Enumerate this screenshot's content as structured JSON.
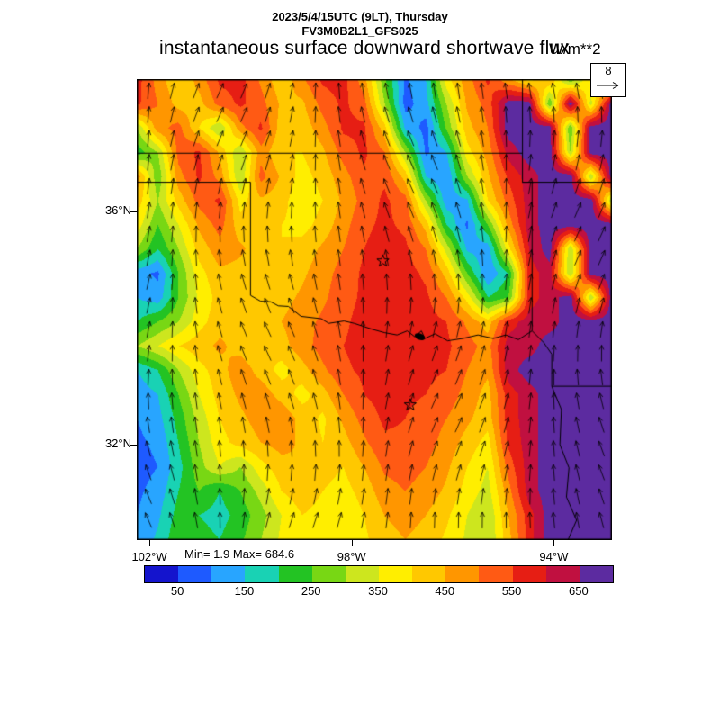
{
  "header": {
    "datetime_line": "2023/5/4/15UTC (9LT), Thursday",
    "model_line": "FV3M0B2L1_GFS025",
    "title": "instantaneous surface downward shortwave flux",
    "units": "W/m**2"
  },
  "stats": {
    "min_max": "Min= 1.9 Max= 684.6"
  },
  "wind_ref": {
    "value": "8"
  },
  "chart_data": {
    "type": "heatmap",
    "title": "instantaneous surface downward shortwave flux",
    "units": "W/m**2",
    "min": 1.9,
    "max": 684.6,
    "wind_reference": 8,
    "lon_range_w": [
      102.25,
      92.85
    ],
    "lat_range_n": [
      30.36,
      38.27
    ],
    "lat_ticks": [
      {
        "value": 36,
        "label": "36°N"
      },
      {
        "value": 32,
        "label": "32°N"
      }
    ],
    "lon_ticks": [
      {
        "value": 102,
        "label": "102°W"
      },
      {
        "value": 98,
        "label": "98°W"
      },
      {
        "value": 94,
        "label": "94°W"
      }
    ],
    "colorbar": {
      "boundaries": [
        50,
        100,
        150,
        200,
        250,
        300,
        350,
        400,
        450,
        500,
        550,
        600,
        650
      ],
      "colors": [
        "#1414cd",
        "#1e5aff",
        "#28a5ff",
        "#19d2b4",
        "#23c323",
        "#78d714",
        "#cde61e",
        "#ffee00",
        "#ffc800",
        "#ff9600",
        "#ff5a14",
        "#e61e14",
        "#c01040",
        "#5c2ba0"
      ],
      "tick_labels": [
        "50",
        "150",
        "250",
        "350",
        "450",
        "550",
        "650"
      ]
    },
    "grid": {
      "cols": 24,
      "rows": 20,
      "values": [
        [
          570,
          480,
          400,
          470,
          560,
          570,
          490,
          410,
          490,
          560,
          570,
          470,
          260,
          90,
          150,
          380,
          480,
          560,
          460,
          380,
          450,
          260,
          400,
          280
        ],
        [
          560,
          500,
          430,
          430,
          520,
          560,
          520,
          440,
          440,
          520,
          560,
          520,
          300,
          80,
          130,
          300,
          460,
          520,
          680,
          680,
          250,
          680,
          330,
          680
        ],
        [
          300,
          480,
          520,
          400,
          300,
          480,
          560,
          420,
          420,
          480,
          560,
          560,
          420,
          140,
          80,
          260,
          430,
          500,
          680,
          680,
          680,
          250,
          680,
          680
        ],
        [
          220,
          300,
          520,
          560,
          440,
          300,
          480,
          400,
          400,
          440,
          520,
          560,
          500,
          300,
          90,
          150,
          380,
          470,
          620,
          680,
          680,
          300,
          680,
          680
        ],
        [
          480,
          260,
          480,
          560,
          480,
          300,
          520,
          440,
          380,
          420,
          480,
          540,
          540,
          430,
          150,
          100,
          300,
          440,
          560,
          625,
          680,
          680,
          300,
          680
        ],
        [
          430,
          300,
          420,
          520,
          560,
          380,
          440,
          420,
          360,
          400,
          460,
          520,
          560,
          520,
          300,
          120,
          140,
          400,
          520,
          625,
          680,
          680,
          680,
          300
        ],
        [
          380,
          250,
          350,
          460,
          520,
          420,
          440,
          400,
          380,
          420,
          480,
          540,
          560,
          540,
          430,
          200,
          90,
          250,
          470,
          625,
          680,
          680,
          680,
          680
        ],
        [
          300,
          200,
          300,
          420,
          480,
          460,
          420,
          400,
          420,
          460,
          500,
          550,
          570,
          560,
          500,
          330,
          140,
          120,
          380,
          600,
          680,
          300,
          680,
          680
        ],
        [
          120,
          90,
          250,
          380,
          440,
          430,
          400,
          410,
          440,
          480,
          520,
          560,
          575,
          570,
          540,
          430,
          250,
          100,
          200,
          575,
          625,
          300,
          680,
          680
        ],
        [
          150,
          120,
          250,
          360,
          420,
          420,
          410,
          430,
          460,
          490,
          530,
          560,
          575,
          575,
          560,
          500,
          380,
          200,
          250,
          575,
          625,
          680,
          300,
          680
        ],
        [
          200,
          250,
          300,
          380,
          430,
          440,
          430,
          450,
          480,
          510,
          540,
          570,
          575,
          575,
          570,
          550,
          490,
          420,
          575,
          625,
          625,
          680,
          680,
          680
        ],
        [
          300,
          350,
          400,
          430,
          460,
          430,
          400,
          430,
          480,
          520,
          550,
          570,
          575,
          575,
          570,
          560,
          520,
          480,
          625,
          625,
          680,
          680,
          680,
          680
        ],
        [
          150,
          200,
          300,
          380,
          430,
          480,
          430,
          380,
          430,
          490,
          540,
          560,
          575,
          570,
          560,
          550,
          500,
          460,
          625,
          680,
          680,
          680,
          680,
          680
        ],
        [
          120,
          150,
          250,
          350,
          420,
          460,
          480,
          430,
          380,
          430,
          500,
          550,
          570,
          560,
          550,
          530,
          480,
          430,
          575,
          625,
          680,
          680,
          680,
          680
        ],
        [
          100,
          130,
          220,
          320,
          400,
          440,
          470,
          490,
          430,
          390,
          460,
          520,
          560,
          550,
          530,
          500,
          460,
          420,
          575,
          625,
          680,
          680,
          680,
          680
        ],
        [
          90,
          110,
          200,
          300,
          380,
          420,
          450,
          470,
          440,
          400,
          430,
          490,
          540,
          540,
          520,
          480,
          430,
          380,
          560,
          625,
          680,
          680,
          680,
          680
        ],
        [
          80,
          100,
          180,
          280,
          350,
          300,
          380,
          430,
          450,
          420,
          400,
          450,
          510,
          520,
          500,
          460,
          400,
          350,
          520,
          625,
          680,
          680,
          680,
          680
        ],
        [
          90,
          120,
          200,
          250,
          200,
          250,
          320,
          400,
          430,
          400,
          380,
          420,
          480,
          500,
          480,
          440,
          380,
          330,
          480,
          625,
          680,
          680,
          680,
          680
        ],
        [
          100,
          140,
          220,
          200,
          180,
          220,
          280,
          350,
          400,
          380,
          360,
          400,
          450,
          470,
          450,
          410,
          350,
          300,
          450,
          575,
          680,
          680,
          680,
          680
        ],
        [
          110,
          160,
          240,
          220,
          200,
          240,
          300,
          360,
          400,
          380,
          360,
          390,
          430,
          450,
          430,
          390,
          340,
          300,
          430,
          575,
          680,
          680,
          680,
          680
        ]
      ]
    },
    "borders": [
      [
        [
          102.25,
          36.999
        ],
        [
          94.62,
          36.999
        ]
      ],
      [
        [
          94.62,
          38.27
        ],
        [
          94.62,
          36.5
        ]
      ],
      [
        [
          94.62,
          36.5
        ],
        [
          92.85,
          36.5
        ]
      ],
      [
        [
          94.62,
          36.5
        ],
        [
          94.43,
          36.5
        ],
        [
          94.43,
          33.95
        ]
      ],
      [
        [
          94.43,
          33.95
        ],
        [
          94.7,
          33.8
        ],
        [
          94.95,
          33.88
        ],
        [
          95.2,
          33.82
        ],
        [
          95.5,
          33.88
        ],
        [
          95.8,
          33.82
        ],
        [
          96.1,
          33.78
        ],
        [
          96.35,
          33.9
        ],
        [
          96.55,
          33.82
        ],
        [
          96.62,
          33.95
        ],
        [
          96.75,
          33.85
        ],
        [
          96.9,
          33.95
        ],
        [
          97.1,
          33.88
        ],
        [
          97.35,
          33.92
        ],
        [
          97.6,
          33.98
        ],
        [
          97.95,
          34.08
        ],
        [
          98.15,
          34.12
        ],
        [
          98.45,
          34.08
        ],
        [
          98.6,
          34.16
        ],
        [
          99.0,
          34.2
        ],
        [
          99.25,
          34.37
        ],
        [
          99.45,
          34.38
        ],
        [
          99.6,
          34.45
        ],
        [
          99.8,
          34.46
        ],
        [
          100.0,
          34.56
        ]
      ],
      [
        [
          100.0,
          34.56
        ],
        [
          100.0,
          36.5
        ]
      ],
      [
        [
          100.0,
          36.5
        ],
        [
          102.25,
          36.5
        ]
      ],
      [
        [
          94.43,
          33.95
        ],
        [
          94.2,
          33.75
        ],
        [
          94.04,
          33.55
        ],
        [
          94.04,
          33.0
        ]
      ],
      [
        [
          94.04,
          33.0
        ],
        [
          93.85,
          32.6
        ],
        [
          93.88,
          32.0
        ],
        [
          93.7,
          31.6
        ],
        [
          93.75,
          31.1
        ],
        [
          93.55,
          30.7
        ],
        [
          93.72,
          30.36
        ]
      ],
      [
        [
          94.04,
          33.0
        ],
        [
          92.85,
          33.0
        ]
      ]
    ],
    "stars": [
      {
        "lon": 97.38,
        "lat": 35.15
      },
      {
        "lon": 96.84,
        "lat": 32.68
      }
    ],
    "lake": {
      "lon": 96.65,
      "lat": 33.85
    }
  }
}
